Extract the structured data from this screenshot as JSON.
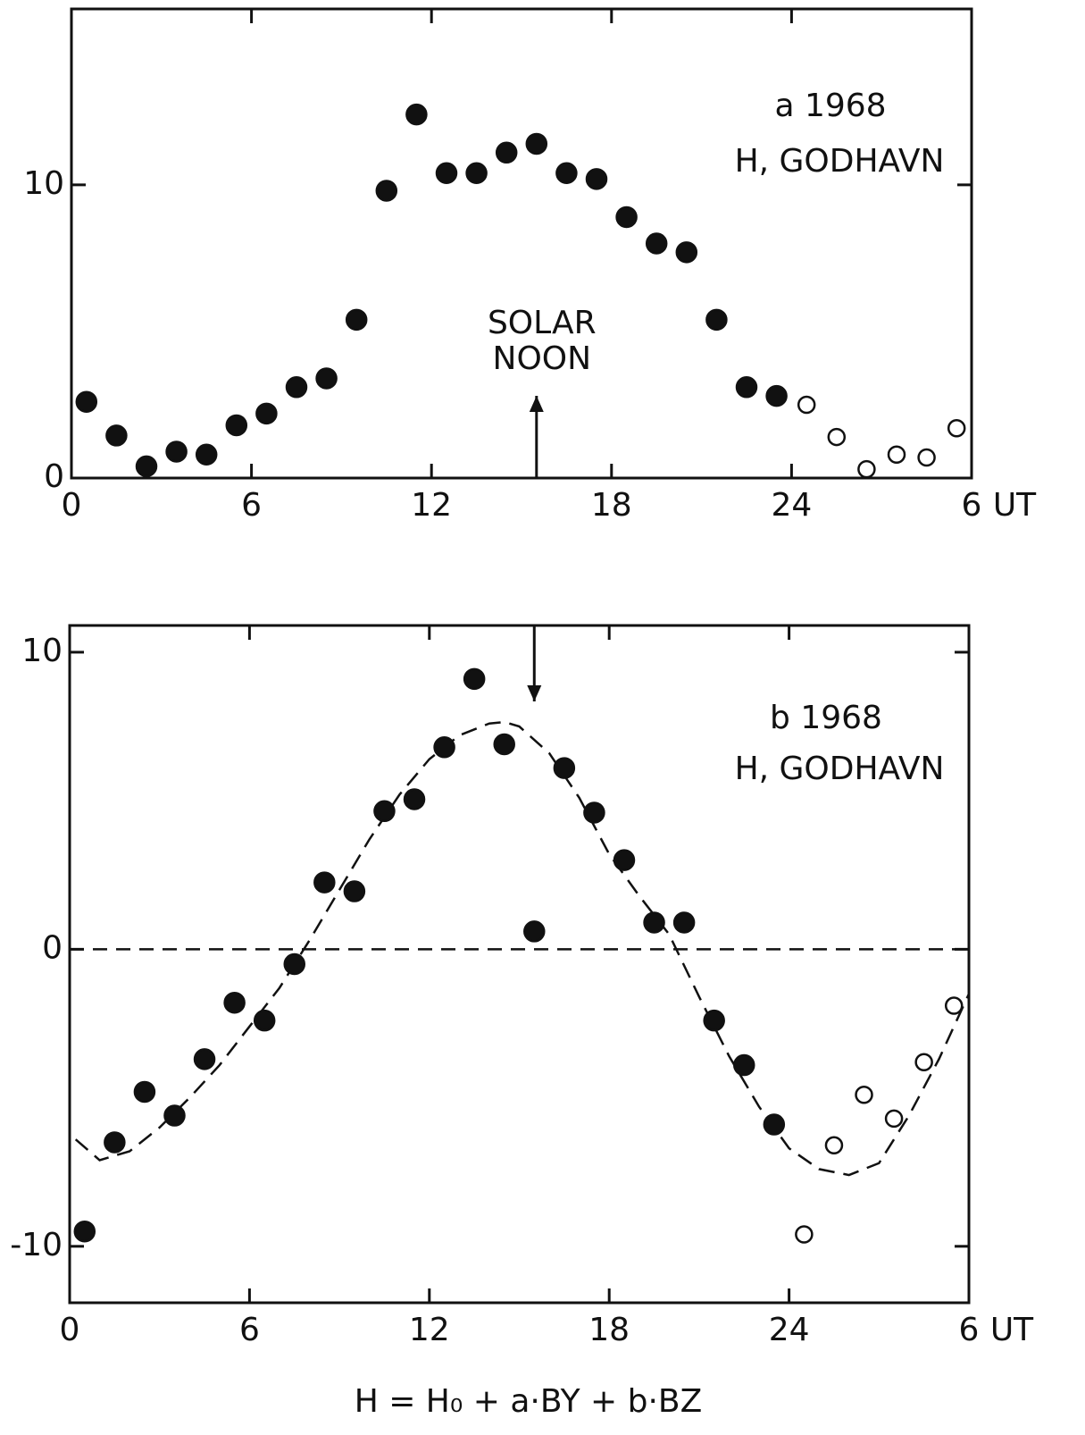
{
  "chart_data": [
    {
      "type": "scatter",
      "xlim": [
        0,
        30
      ],
      "xticks": [
        0,
        6,
        12,
        18,
        24,
        {
          "value": 30,
          "label": "6"
        }
      ],
      "xlabel": "UT",
      "ylim": [
        0,
        16
      ],
      "yticks": [
        0,
        10
      ],
      "annotations": [
        "a 1968",
        "H, GODHAVN"
      ],
      "arrow": {
        "x": 15.5,
        "direction": "up",
        "label": [
          "SOLAR",
          "NOON"
        ]
      },
      "series": [
        {
          "marker": "filled",
          "color": "#111",
          "x": [
            0.5,
            1.5,
            2.5,
            3.5,
            4.5,
            5.5,
            6.5,
            7.5,
            8.5,
            9.5,
            10.5,
            11.5,
            12.5,
            13.5,
            14.5,
            15.5,
            16.5,
            17.5,
            18.5,
            19.5,
            20.5,
            21.5,
            22.5,
            23.5
          ],
          "values": [
            2.6,
            1.45,
            0.4,
            0.9,
            0.8,
            1.8,
            2.2,
            3.1,
            3.4,
            5.4,
            9.8,
            12.4,
            10.4,
            10.4,
            11.1,
            11.4,
            10.4,
            10.2,
            8.9,
            8.0,
            7.7,
            5.4,
            3.1,
            2.8
          ]
        },
        {
          "marker": "open",
          "color": "#111",
          "x": [
            24.5,
            25.5,
            26.5,
            27.5,
            28.5,
            29.5
          ],
          "values": [
            2.5,
            1.4,
            0.3,
            0.8,
            0.7,
            1.7
          ]
        }
      ]
    },
    {
      "type": "scatter",
      "xlim": [
        0,
        30
      ],
      "xticks": [
        0,
        6,
        12,
        18,
        24,
        {
          "value": 30,
          "label": "6"
        }
      ],
      "xlabel": "UT",
      "ylim": [
        -11.9,
        10.9
      ],
      "yticks": [
        -10,
        0,
        10
      ],
      "hline": 0,
      "annotations": [
        "b 1968",
        "H, GODHAVN"
      ],
      "formula": "H = H₀ + a·BY + b·BZ",
      "arrow": {
        "x": 15.5,
        "direction": "down"
      },
      "fit": {
        "color": "#111",
        "x": [
          0.2,
          1,
          2,
          3,
          4,
          5,
          6,
          7,
          8,
          9,
          10,
          11,
          12,
          13,
          14,
          14.5,
          15,
          16,
          17,
          18,
          19,
          20,
          21,
          22,
          23,
          24,
          25,
          26,
          27,
          28,
          29,
          30
        ],
        "values": [
          -6.4,
          -7.1,
          -6.8,
          -6.0,
          -5.0,
          -3.9,
          -2.6,
          -1.3,
          0.3,
          2.0,
          3.7,
          5.2,
          6.4,
          7.2,
          7.6,
          7.65,
          7.5,
          6.6,
          5.1,
          3.2,
          1.8,
          0.5,
          -1.6,
          -3.6,
          -5.3,
          -6.7,
          -7.4,
          -7.6,
          -7.2,
          -5.6,
          -3.7,
          -1.5
        ]
      },
      "series": [
        {
          "marker": "filled",
          "color": "#111",
          "x": [
            0.5,
            1.5,
            2.5,
            3.5,
            4.5,
            5.5,
            6.5,
            7.5,
            8.5,
            9.5,
            10.5,
            11.5,
            12.5,
            13.5,
            14.5,
            15.5,
            16.5,
            17.5,
            18.5,
            19.5,
            20.5,
            21.5,
            22.5,
            23.5
          ],
          "values": [
            -9.5,
            -6.5,
            -4.8,
            -5.6,
            -3.7,
            -1.8,
            -2.4,
            -0.5,
            2.25,
            1.95,
            4.65,
            5.05,
            6.8,
            9.1,
            6.9,
            0.6,
            6.1,
            4.6,
            3.0,
            0.9,
            0.9,
            -2.4,
            -3.9,
            -5.9
          ]
        },
        {
          "marker": "open",
          "color": "#111",
          "x": [
            24.5,
            25.5,
            26.5,
            27.5,
            28.5,
            29.5
          ],
          "values": [
            -9.6,
            -6.6,
            -4.9,
            -5.7,
            -3.8,
            -1.9
          ]
        }
      ]
    }
  ]
}
